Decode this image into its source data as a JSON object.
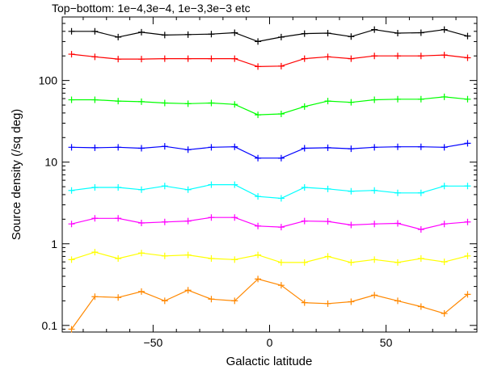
{
  "chart_data": {
    "type": "line",
    "title": "Top−bottom: 1e−4,3e−4, 1e−3,3e−3 etc",
    "xlabel": "Galactic latitude",
    "ylabel": "Source density (/sq deg)",
    "xlim": [
      -89,
      89
    ],
    "ylim": [
      0.083,
      600
    ],
    "yscale": "log",
    "x_ticks": [
      -50,
      0,
      50
    ],
    "x_tick_labels": [
      "−50",
      "0",
      "50"
    ],
    "y_ticks": [
      0.1,
      1,
      10,
      100
    ],
    "y_tick_labels": [
      "0.1",
      "1",
      "10",
      "100"
    ],
    "grid": false,
    "legend": "none",
    "x": [
      -85,
      -75,
      -65,
      -55,
      -45,
      -35,
      -25,
      -15,
      -5,
      5,
      15,
      25,
      35,
      45,
      55,
      65,
      75,
      85
    ],
    "series": [
      {
        "color": "#000000",
        "values": [
          400,
          400,
          340,
          390,
          360,
          365,
          370,
          385,
          300,
          340,
          375,
          380,
          345,
          420,
          380,
          385,
          420,
          350
        ]
      },
      {
        "color": "#ff0000",
        "values": [
          210,
          195,
          183,
          183,
          185,
          185,
          185,
          185,
          148,
          150,
          185,
          195,
          185,
          200,
          200,
          200,
          205,
          190
        ]
      },
      {
        "color": "#00ff00",
        "values": [
          58,
          58,
          56,
          55,
          53,
          52,
          53,
          51,
          38,
          39,
          48,
          56,
          54,
          58,
          59,
          59,
          63,
          59
        ]
      },
      {
        "color": "#0000ff",
        "values": [
          15.2,
          15.0,
          15.2,
          14.8,
          15.6,
          14.2,
          15.2,
          15.4,
          11.2,
          11.2,
          14.8,
          15.0,
          14.6,
          15.2,
          15.4,
          15.4,
          15.2,
          17.0
        ]
      },
      {
        "color": "#00ffff",
        "values": [
          4.5,
          4.9,
          4.9,
          4.6,
          5.1,
          4.6,
          5.3,
          5.3,
          3.8,
          3.6,
          4.9,
          4.7,
          4.4,
          4.5,
          4.2,
          4.2,
          5.1,
          5.1
        ]
      },
      {
        "color": "#ff00ff",
        "values": [
          1.75,
          2.05,
          2.05,
          1.8,
          1.85,
          1.9,
          2.1,
          2.1,
          1.65,
          1.6,
          1.9,
          1.88,
          1.7,
          1.75,
          1.78,
          1.5,
          1.75,
          1.85
        ]
      },
      {
        "color": "#ffff00",
        "values": [
          0.64,
          0.79,
          0.66,
          0.77,
          0.71,
          0.73,
          0.66,
          0.64,
          0.73,
          0.59,
          0.59,
          0.7,
          0.59,
          0.64,
          0.59,
          0.66,
          0.6,
          0.71
        ]
      },
      {
        "color": "#ff8800",
        "values": [
          0.09,
          0.225,
          0.22,
          0.26,
          0.2,
          0.27,
          0.21,
          0.2,
          0.37,
          0.31,
          0.19,
          0.185,
          0.195,
          0.235,
          0.2,
          0.17,
          0.14,
          0.24
        ]
      }
    ]
  }
}
